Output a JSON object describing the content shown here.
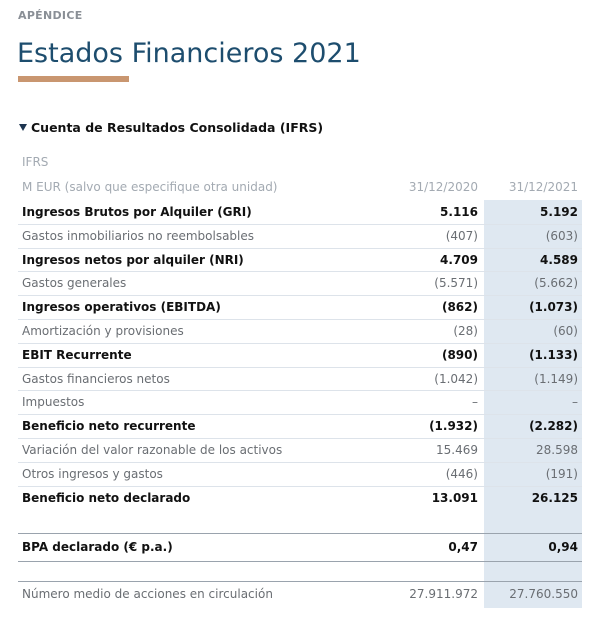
{
  "header": {
    "section": "APÉNDICE",
    "title": "Estados Financieros 2021"
  },
  "table": {
    "title": "Cuenta de Resultados Consolidada (IFRS)",
    "standard": "IFRS",
    "unit": "M EUR (salvo que especifique otra unidad)",
    "columns": [
      "31/12/2020",
      "31/12/2021"
    ],
    "rows": [
      {
        "label": "Ingresos Brutos por Alquiler (GRI)",
        "values": [
          "5.116",
          "5.192"
        ],
        "bold": true
      },
      {
        "label": "Gastos inmobiliarios no reembolsables",
        "values": [
          "(407)",
          "(603)"
        ],
        "bold": false
      },
      {
        "label": "Ingresos netos por alquiler (NRI)",
        "values": [
          "4.709",
          "4.589"
        ],
        "bold": true
      },
      {
        "label": "Gastos generales",
        "values": [
          "(5.571)",
          "(5.662)"
        ],
        "bold": false
      },
      {
        "label": "Ingresos operativos (EBITDA)",
        "values": [
          "(862)",
          "(1.073)"
        ],
        "bold": true
      },
      {
        "label": "Amortización y provisiones",
        "values": [
          "(28)",
          "(60)"
        ],
        "bold": false
      },
      {
        "label": "EBIT Recurrente",
        "values": [
          "(890)",
          "(1.133)"
        ],
        "bold": true
      },
      {
        "label": "Gastos financieros netos",
        "values": [
          "(1.042)",
          "(1.149)"
        ],
        "bold": false
      },
      {
        "label": "Impuestos",
        "values": [
          "–",
          "–"
        ],
        "bold": false
      },
      {
        "label": "Beneficio neto recurrente",
        "values": [
          "(1.932)",
          "(2.282)"
        ],
        "bold": true
      },
      {
        "label": "Variación del valor razonable de los activos",
        "values": [
          "15.469",
          "28.598"
        ],
        "bold": false
      },
      {
        "label": "Otros ingresos y gastos",
        "values": [
          "(446)",
          "(191)"
        ],
        "bold": false
      },
      {
        "label": "Beneficio neto declarado",
        "values": [
          "13.091",
          "26.125"
        ],
        "bold": true
      }
    ],
    "eps": {
      "label": "BPA declarado (€ p.a.)",
      "values": [
        "0,47",
        "0,94"
      ],
      "bold": true
    },
    "shares": {
      "label": "Número medio de acciones en circulación",
      "values": [
        "27.911.972",
        "27.760.550"
      ],
      "bold": false
    }
  }
}
